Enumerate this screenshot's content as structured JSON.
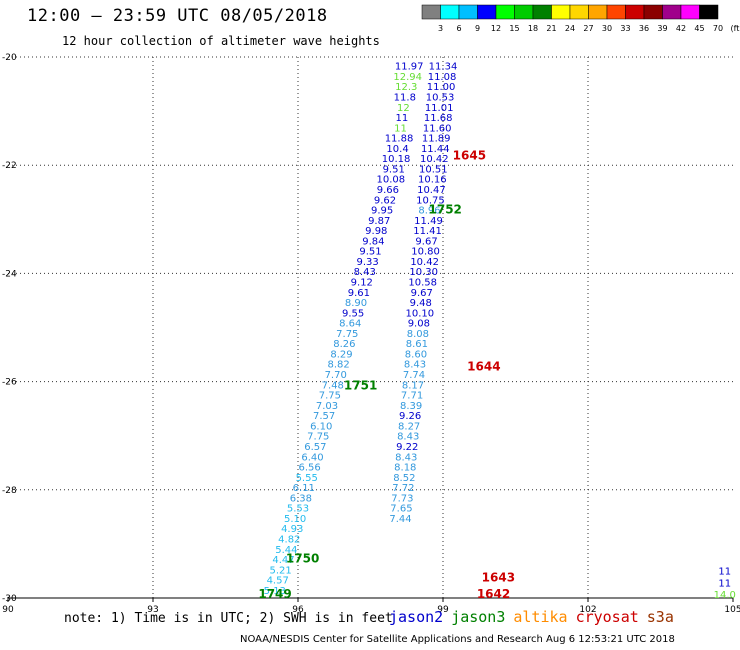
{
  "header": {
    "title": "12:00 – 23:59 UTC 08/05/2018",
    "subtitle": "12 hour collection of altimeter wave heights"
  },
  "footer": {
    "note": "note: 1) Time is in UTC; 2) SWH is in feet",
    "credit": "NOAA/NESDIS Center for Satellite Applications and Research   Aug  6 12:53:21 UTC 2018"
  },
  "legend": [
    {
      "name": "jason2",
      "color": "#0000cc"
    },
    {
      "name": "jason3",
      "color": "#008000"
    },
    {
      "name": "altika",
      "color": "#ff8c00"
    },
    {
      "name": "cryosat",
      "color": "#cc0000"
    },
    {
      "name": "s3a",
      "color": "#993300"
    }
  ],
  "colorbar": {
    "labels": [
      "3",
      "6",
      "9",
      "12",
      "15",
      "18",
      "21",
      "24",
      "27",
      "30",
      "33",
      "36",
      "39",
      "42",
      "45",
      "70",
      "(ft)"
    ],
    "colors": [
      "#808080",
      "#00ffff",
      "#00bfff",
      "#0000ff",
      "#00ff00",
      "#00cc00",
      "#008000",
      "#ffff00",
      "#ffd700",
      "#ffa500",
      "#ff4500",
      "#cc0000",
      "#8b0000",
      "#a0008b",
      "#ff00ff",
      "#000000"
    ]
  },
  "chart_data": {
    "type": "scatter",
    "xlim": [
      90,
      105
    ],
    "ylim": [
      -30,
      -20
    ],
    "x_ticks": [
      90,
      93,
      96,
      99,
      102,
      105
    ],
    "y_ticks": [
      -20,
      -22,
      -24,
      -26,
      -28,
      -30
    ],
    "grid": true,
    "tracks": [
      {
        "name": "track_west",
        "points": [
          {
            "lon": 98.3,
            "lat": -20.16,
            "value": "11.97",
            "color": "#0000cc"
          },
          {
            "lon": 98.27,
            "lat": -20.35,
            "value": "12.94",
            "color": "#66dd33"
          },
          {
            "lon": 98.24,
            "lat": -20.54,
            "value": "12.3",
            "color": "#66dd33"
          },
          {
            "lon": 98.21,
            "lat": -20.73,
            "value": "11.8",
            "color": "#0000cc"
          },
          {
            "lon": 98.18,
            "lat": -20.92,
            "value": "12",
            "color": "#66dd33"
          },
          {
            "lon": 98.15,
            "lat": -21.11,
            "value": "11",
            "color": "#0000cc"
          },
          {
            "lon": 98.12,
            "lat": -21.3,
            "value": "11",
            "color": "#66dd33"
          },
          {
            "lon": 98.09,
            "lat": -21.49,
            "value": "11.88",
            "color": "#0000cc"
          },
          {
            "lon": 98.06,
            "lat": -21.68,
            "value": "10.4",
            "color": "#0000cc"
          },
          {
            "lon": 98.03,
            "lat": -21.87,
            "value": "10.18",
            "color": "#0000cc"
          },
          {
            "lon": 97.98,
            "lat": -22.06,
            "value": "9.51",
            "color": "#0000cc"
          },
          {
            "lon": 97.92,
            "lat": -22.25,
            "value": "10.08",
            "color": "#0000cc"
          },
          {
            "lon": 97.86,
            "lat": -22.44,
            "value": "9.66",
            "color": "#0000cc"
          },
          {
            "lon": 97.8,
            "lat": -22.63,
            "value": "9.62",
            "color": "#0000cc"
          },
          {
            "lon": 97.74,
            "lat": -22.82,
            "value": "9.95",
            "color": "#0000cc"
          },
          {
            "lon": 97.68,
            "lat": -23.01,
            "value": "9.87",
            "color": "#0000cc"
          },
          {
            "lon": 97.62,
            "lat": -23.2,
            "value": "9.98",
            "color": "#0000cc"
          },
          {
            "lon": 97.56,
            "lat": -23.39,
            "value": "9.84",
            "color": "#0000cc"
          },
          {
            "lon": 97.5,
            "lat": -23.58,
            "value": "9.51",
            "color": "#0000cc"
          },
          {
            "lon": 97.44,
            "lat": -23.77,
            "value": "9.33",
            "color": "#0000cc"
          },
          {
            "lon": 97.38,
            "lat": -23.96,
            "value": "8.43",
            "color": "#0000cc"
          },
          {
            "lon": 97.32,
            "lat": -24.15,
            "value": "9.12",
            "color": "#0000cc"
          },
          {
            "lon": 97.26,
            "lat": -24.34,
            "value": "9.61",
            "color": "#0000cc"
          },
          {
            "lon": 97.2,
            "lat": -24.53,
            "value": "8.90",
            "color": "#3399dd"
          },
          {
            "lon": 97.14,
            "lat": -24.72,
            "value": "9.55",
            "color": "#0000cc"
          },
          {
            "lon": 97.08,
            "lat": -24.91,
            "value": "8.64",
            "color": "#3399dd"
          },
          {
            "lon": 97.02,
            "lat": -25.1,
            "value": "7.75",
            "color": "#3399dd"
          },
          {
            "lon": 96.96,
            "lat": -25.29,
            "value": "8.26",
            "color": "#3399dd"
          },
          {
            "lon": 96.9,
            "lat": -25.48,
            "value": "8.29",
            "color": "#3399dd"
          },
          {
            "lon": 96.84,
            "lat": -25.67,
            "value": "8.82",
            "color": "#3399dd"
          },
          {
            "lon": 96.78,
            "lat": -25.86,
            "value": "7.70",
            "color": "#3399dd"
          },
          {
            "lon": 96.72,
            "lat": -26.05,
            "value": "7.48",
            "color": "#3399dd"
          },
          {
            "lon": 96.66,
            "lat": -26.24,
            "value": "7.75",
            "color": "#3399dd"
          },
          {
            "lon": 96.6,
            "lat": -26.43,
            "value": "7.03",
            "color": "#3399dd"
          },
          {
            "lon": 96.54,
            "lat": -26.62,
            "value": "7.57",
            "color": "#3399dd"
          },
          {
            "lon": 96.48,
            "lat": -26.81,
            "value": "6.10",
            "color": "#3399dd"
          },
          {
            "lon": 96.42,
            "lat": -27.0,
            "value": "7.75",
            "color": "#3399dd"
          },
          {
            "lon": 96.36,
            "lat": -27.19,
            "value": "6.57",
            "color": "#3399dd"
          },
          {
            "lon": 96.3,
            "lat": -27.38,
            "value": "6.40",
            "color": "#3399dd"
          },
          {
            "lon": 96.24,
            "lat": -27.57,
            "value": "6.56",
            "color": "#3399dd"
          },
          {
            "lon": 96.18,
            "lat": -27.76,
            "value": "5.55",
            "color": "#22bbee"
          },
          {
            "lon": 96.12,
            "lat": -27.95,
            "value": "6.11",
            "color": "#3399dd"
          },
          {
            "lon": 96.06,
            "lat": -28.14,
            "value": "6.38",
            "color": "#3399dd"
          },
          {
            "lon": 96.0,
            "lat": -28.33,
            "value": "5.53",
            "color": "#22bbee"
          },
          {
            "lon": 95.94,
            "lat": -28.52,
            "value": "5.10",
            "color": "#22bbee"
          },
          {
            "lon": 95.88,
            "lat": -28.71,
            "value": "4.93",
            "color": "#22bbee"
          },
          {
            "lon": 95.82,
            "lat": -28.9,
            "value": "4.82",
            "color": "#22bbee"
          },
          {
            "lon": 95.76,
            "lat": -29.09,
            "value": "5.44",
            "color": "#22bbee"
          },
          {
            "lon": 95.7,
            "lat": -29.28,
            "value": "4.47",
            "color": "#22bbee"
          },
          {
            "lon": 95.64,
            "lat": -29.47,
            "value": "5.21",
            "color": "#22bbee"
          },
          {
            "lon": 95.58,
            "lat": -29.66,
            "value": "4.57",
            "color": "#22bbee"
          },
          {
            "lon": 95.52,
            "lat": -29.85,
            "value": "5.13",
            "color": "#22bbee"
          }
        ]
      },
      {
        "name": "track_east",
        "points": [
          {
            "lon": 99.0,
            "lat": -20.16,
            "value": "11.34",
            "color": "#0000cc"
          },
          {
            "lon": 98.98,
            "lat": -20.35,
            "value": "11.08",
            "color": "#0000cc"
          },
          {
            "lon": 98.96,
            "lat": -20.54,
            "value": "11.00",
            "color": "#0000cc"
          },
          {
            "lon": 98.94,
            "lat": -20.73,
            "value": "10.53",
            "color": "#0000cc"
          },
          {
            "lon": 98.92,
            "lat": -20.92,
            "value": "11.01",
            "color": "#0000cc"
          },
          {
            "lon": 98.9,
            "lat": -21.11,
            "value": "11.68",
            "color": "#0000cc"
          },
          {
            "lon": 98.88,
            "lat": -21.3,
            "value": "11.60",
            "color": "#0000cc"
          },
          {
            "lon": 98.86,
            "lat": -21.49,
            "value": "11.89",
            "color": "#0000cc"
          },
          {
            "lon": 98.84,
            "lat": -21.68,
            "value": "11.44",
            "color": "#0000cc"
          },
          {
            "lon": 98.82,
            "lat": -21.87,
            "value": "10.42",
            "color": "#0000cc"
          },
          {
            "lon": 98.8,
            "lat": -22.06,
            "value": "10.51",
            "color": "#0000cc"
          },
          {
            "lon": 98.78,
            "lat": -22.25,
            "value": "10.16",
            "color": "#0000cc"
          },
          {
            "lon": 98.76,
            "lat": -22.44,
            "value": "10.47",
            "color": "#0000cc"
          },
          {
            "lon": 98.74,
            "lat": -22.63,
            "value": "10.75",
            "color": "#0000cc"
          },
          {
            "lon": 98.72,
            "lat": -22.82,
            "value": "8.96",
            "color": "#3399dd"
          },
          {
            "lon": 98.7,
            "lat": -23.01,
            "value": "11.49",
            "color": "#0000cc"
          },
          {
            "lon": 98.68,
            "lat": -23.2,
            "value": "11.41",
            "color": "#0000cc"
          },
          {
            "lon": 98.66,
            "lat": -23.39,
            "value": "9.67",
            "color": "#0000cc"
          },
          {
            "lon": 98.64,
            "lat": -23.58,
            "value": "10.80",
            "color": "#0000cc"
          },
          {
            "lon": 98.62,
            "lat": -23.77,
            "value": "10.42",
            "color": "#0000cc"
          },
          {
            "lon": 98.6,
            "lat": -23.96,
            "value": "10.30",
            "color": "#0000cc"
          },
          {
            "lon": 98.58,
            "lat": -24.15,
            "value": "10.58",
            "color": "#0000cc"
          },
          {
            "lon": 98.56,
            "lat": -24.34,
            "value": "9.67",
            "color": "#0000cc"
          },
          {
            "lon": 98.54,
            "lat": -24.53,
            "value": "9.48",
            "color": "#0000cc"
          },
          {
            "lon": 98.52,
            "lat": -24.72,
            "value": "10.10",
            "color": "#0000cc"
          },
          {
            "lon": 98.5,
            "lat": -24.91,
            "value": "9.08",
            "color": "#0000cc"
          },
          {
            "lon": 98.48,
            "lat": -25.1,
            "value": "8.08",
            "color": "#3399dd"
          },
          {
            "lon": 98.46,
            "lat": -25.29,
            "value": "8.61",
            "color": "#3399dd"
          },
          {
            "lon": 98.44,
            "lat": -25.48,
            "value": "8.60",
            "color": "#3399dd"
          },
          {
            "lon": 98.42,
            "lat": -25.67,
            "value": "8.43",
            "color": "#3399dd"
          },
          {
            "lon": 98.4,
            "lat": -25.86,
            "value": "7.74",
            "color": "#3399dd"
          },
          {
            "lon": 98.38,
            "lat": -26.05,
            "value": "8.17",
            "color": "#3399dd"
          },
          {
            "lon": 98.36,
            "lat": -26.24,
            "value": "7.71",
            "color": "#3399dd"
          },
          {
            "lon": 98.34,
            "lat": -26.43,
            "value": "8.39",
            "color": "#3399dd"
          },
          {
            "lon": 98.32,
            "lat": -26.62,
            "value": "9.26",
            "color": "#0000cc"
          },
          {
            "lon": 98.3,
            "lat": -26.81,
            "value": "8.27",
            "color": "#3399dd"
          },
          {
            "lon": 98.28,
            "lat": -27.0,
            "value": "8.43",
            "color": "#3399dd"
          },
          {
            "lon": 98.26,
            "lat": -27.19,
            "value": "9.22",
            "color": "#0000cc"
          },
          {
            "lon": 98.24,
            "lat": -27.38,
            "value": "8.43",
            "color": "#3399dd"
          },
          {
            "lon": 98.22,
            "lat": -27.57,
            "value": "8.18",
            "color": "#3399dd"
          },
          {
            "lon": 98.2,
            "lat": -27.76,
            "value": "8.52",
            "color": "#3399dd"
          },
          {
            "lon": 98.18,
            "lat": -27.95,
            "value": "7.72",
            "color": "#3399dd"
          },
          {
            "lon": 98.16,
            "lat": -28.14,
            "value": "7.73",
            "color": "#3399dd"
          },
          {
            "lon": 98.14,
            "lat": -28.33,
            "value": "7.65",
            "color": "#3399dd"
          },
          {
            "lon": 98.12,
            "lat": -28.52,
            "value": "7.44",
            "color": "#3399dd"
          }
        ]
      },
      {
        "name": "track_right_edge",
        "points": [
          {
            "lon": 104.83,
            "lat": -29.49,
            "value": "11",
            "color": "#0000cc"
          },
          {
            "lon": 104.83,
            "lat": -29.71,
            "value": "11",
            "color": "#0000cc"
          },
          {
            "lon": 104.83,
            "lat": -29.93,
            "value": "14.0",
            "color": "#66dd33"
          }
        ]
      }
    ],
    "time_labels": [
      {
        "lon": 99.2,
        "lat": -21.8,
        "text": "1645",
        "color": "#cc0000"
      },
      {
        "lon": 98.7,
        "lat": -22.8,
        "text": "1752",
        "color": "#008000"
      },
      {
        "lon": 99.5,
        "lat": -25.7,
        "text": "1644",
        "color": "#cc0000"
      },
      {
        "lon": 96.95,
        "lat": -26.05,
        "text": "1751",
        "color": "#008000"
      },
      {
        "lon": 99.8,
        "lat": -29.6,
        "text": "1643",
        "color": "#cc0000"
      },
      {
        "lon": 95.75,
        "lat": -29.25,
        "text": "1750",
        "color": "#008000"
      },
      {
        "lon": 99.7,
        "lat": -29.91,
        "text": "1642",
        "color": "#cc0000"
      },
      {
        "lon": 95.18,
        "lat": -29.91,
        "text": "1749",
        "color": "#008000"
      }
    ]
  }
}
